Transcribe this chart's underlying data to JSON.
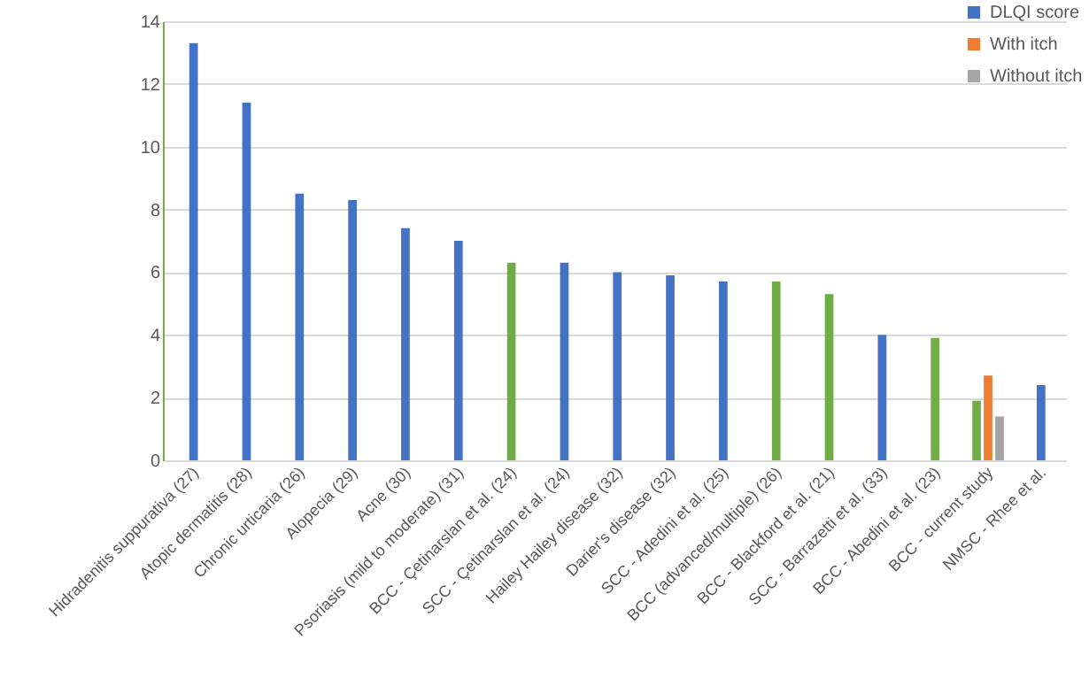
{
  "chart_data": {
    "type": "bar",
    "categories": [
      "Hidradenitis suppurativa (27)",
      "Atopic dermatitis (28)",
      "Chronic urticaria (26)",
      "Alopecia (29)",
      "Acne (30)",
      "Psoriasis (mild to moderate) (31)",
      "BCC - Çetinarslan et al. (24)",
      "SCC - Çetinarslan et al. (24)",
      "Hailey Hailey disease (32)",
      "Darier's disease (32)",
      "SCC - Adedini et al. (25)",
      "BCC (advanced/multiple) (26)",
      "BCC - Blackford et al. (21)",
      "SCC - Barrazetti et al. (33)",
      "BCC - Abedini et al. (23)",
      "BCC - current study",
      "NMSC - Rhee et al."
    ],
    "series": [
      {
        "name": "DLQI score",
        "color": "#4472c4",
        "values": [
          13.3,
          11.4,
          8.5,
          8.3,
          7.4,
          7.0,
          6.3,
          6.3,
          6.0,
          5.9,
          5.7,
          5.7,
          5.3,
          4.0,
          3.9,
          1.9,
          2.4
        ],
        "colors": [
          "#4472c4",
          "#4472c4",
          "#4472c4",
          "#4472c4",
          "#4472c4",
          "#4472c4",
          "#70ad47",
          "#4472c4",
          "#4472c4",
          "#4472c4",
          "#4472c4",
          "#70ad47",
          "#70ad47",
          "#4472c4",
          "#70ad47",
          "#70ad47",
          "#4472c4"
        ]
      },
      {
        "name": "With itch",
        "color": "#ed7d31",
        "values": [
          null,
          null,
          null,
          null,
          null,
          null,
          null,
          null,
          null,
          null,
          null,
          null,
          null,
          null,
          null,
          2.7,
          null
        ]
      },
      {
        "name": "Without itch",
        "color": "#a5a5a5",
        "values": [
          null,
          null,
          null,
          null,
          null,
          null,
          null,
          null,
          null,
          null,
          null,
          null,
          null,
          null,
          null,
          1.4,
          null
        ]
      }
    ],
    "ylim": [
      0,
      14
    ],
    "yticks": [
      0,
      2,
      4,
      6,
      8,
      10,
      12,
      14
    ],
    "grid": "y",
    "legend": "top right"
  }
}
